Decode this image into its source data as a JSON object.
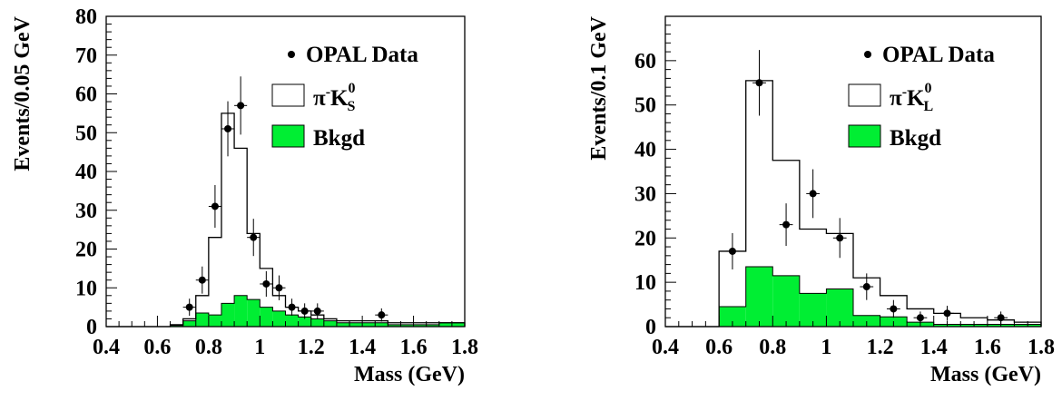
{
  "chart_data": [
    {
      "type": "bar",
      "xlabel": "Mass (GeV)",
      "ylabel": "Events/0.05 GeV",
      "xlim": [
        0.4,
        1.8
      ],
      "ylim": [
        0,
        80
      ],
      "xticks": [
        0.4,
        0.6,
        0.8,
        1,
        1.2,
        1.4,
        1.6,
        1.8
      ],
      "yticks": [
        0,
        10,
        20,
        30,
        40,
        50,
        60,
        70,
        80
      ],
      "x_tick_labels": [
        "0.4",
        "0.6",
        "0.8",
        "1",
        "1.2",
        "1.4",
        "1.6",
        "1.8"
      ],
      "y_tick_labels": [
        "0",
        "10",
        "20",
        "30",
        "40",
        "50",
        "60",
        "70",
        "80"
      ],
      "grid": false,
      "legend_position": "top-right",
      "legend": {
        "data_label": "OPAL Data",
        "signal_label_main": "π",
        "signal_label_sup": "-",
        "signal_label_k": "K",
        "signal_label_k_sup": "0",
        "signal_label_k_sub": "S",
        "background_label": "Bkgd"
      },
      "colors": {
        "background_fill": "#00ee33",
        "signal_fill": "#ffffff",
        "line": "#000000"
      },
      "bin_edges": [
        0.4,
        0.45,
        0.5,
        0.55,
        0.6,
        0.65,
        0.7,
        0.75,
        0.8,
        0.85,
        0.9,
        0.95,
        1.0,
        1.05,
        1.1,
        1.15,
        1.2,
        1.25,
        1.3,
        1.35,
        1.4,
        1.45,
        1.5,
        1.55,
        1.6,
        1.65,
        1.7,
        1.75,
        1.8
      ],
      "series": [
        {
          "name": "π-K0S",
          "kind": "total_histogram",
          "values": [
            0,
            0,
            0,
            0,
            0,
            0.5,
            2,
            8,
            23,
            55,
            46,
            24,
            15,
            8,
            5,
            4,
            3,
            2,
            1.5,
            1.5,
            1.5,
            1.5,
            1,
            1,
            1,
            1,
            1,
            1
          ]
        },
        {
          "name": "Bkgd",
          "kind": "filled_histogram",
          "values": [
            0,
            0,
            0,
            0,
            0,
            0.3,
            1.5,
            3.5,
            3,
            6,
            8,
            7,
            5,
            4,
            3,
            2.5,
            2,
            1.5,
            1,
            1,
            1,
            1,
            0.5,
            0.5,
            0.5,
            0.5,
            1,
            1
          ]
        },
        {
          "name": "OPAL Data",
          "kind": "points_with_errors",
          "x": [
            0.725,
            0.775,
            0.825,
            0.875,
            0.925,
            0.975,
            1.025,
            1.075,
            1.125,
            1.175,
            1.225,
            1.475
          ],
          "y": [
            5,
            12,
            31,
            51,
            57,
            23,
            11,
            10,
            5,
            4,
            4,
            3
          ],
          "err": [
            2.2,
            3.5,
            5.5,
            7.1,
            7.5,
            4.8,
            3.3,
            3.2,
            2.2,
            2,
            2,
            1.7
          ]
        }
      ]
    },
    {
      "type": "bar",
      "xlabel": "Mass (GeV)",
      "ylabel": "Events/0.1 GeV",
      "xlim": [
        0.4,
        1.8
      ],
      "ylim": [
        0,
        70
      ],
      "xticks": [
        0.4,
        0.6,
        0.8,
        1,
        1.2,
        1.4,
        1.6,
        1.8
      ],
      "yticks": [
        0,
        10,
        20,
        30,
        40,
        50,
        60
      ],
      "x_tick_labels": [
        "0.4",
        "0.6",
        "0.8",
        "1",
        "1.2",
        "1.4",
        "1.6",
        "1.8"
      ],
      "y_tick_labels": [
        "0",
        "10",
        "20",
        "30",
        "40",
        "50",
        "60"
      ],
      "grid": false,
      "legend_position": "top-right",
      "legend": {
        "data_label": "OPAL Data",
        "signal_label_main": "π",
        "signal_label_sup": "-",
        "signal_label_k": "K",
        "signal_label_k_sup": "0",
        "signal_label_k_sub": "L",
        "background_label": "Bkgd"
      },
      "colors": {
        "background_fill": "#00ee33",
        "signal_fill": "#ffffff",
        "line": "#000000"
      },
      "bin_edges": [
        0.4,
        0.5,
        0.6,
        0.7,
        0.8,
        0.9,
        1.0,
        1.1,
        1.2,
        1.3,
        1.4,
        1.5,
        1.6,
        1.7,
        1.8
      ],
      "series": [
        {
          "name": "π-K0L",
          "kind": "total_histogram",
          "values": [
            0,
            0,
            17,
            55.5,
            37.5,
            22,
            21,
            11,
            7,
            4,
            3,
            2,
            1.5,
            1
          ]
        },
        {
          "name": "Bkgd",
          "kind": "filled_histogram",
          "values": [
            0,
            0,
            4.5,
            13.5,
            11.5,
            7.5,
            8.5,
            2.5,
            2.2,
            1,
            0.5,
            0.5,
            0.5,
            0.5
          ]
        },
        {
          "name": "OPAL Data",
          "kind": "points_with_errors",
          "x": [
            0.65,
            0.75,
            0.85,
            0.95,
            1.05,
            1.15,
            1.25,
            1.35,
            1.45,
            1.65
          ],
          "y": [
            17,
            55,
            23,
            30,
            20,
            9,
            4,
            2,
            3,
            2
          ],
          "err": [
            4.1,
            7.4,
            4.8,
            5.5,
            4.5,
            3,
            2,
            1.4,
            1.7,
            1.4
          ]
        }
      ]
    }
  ]
}
